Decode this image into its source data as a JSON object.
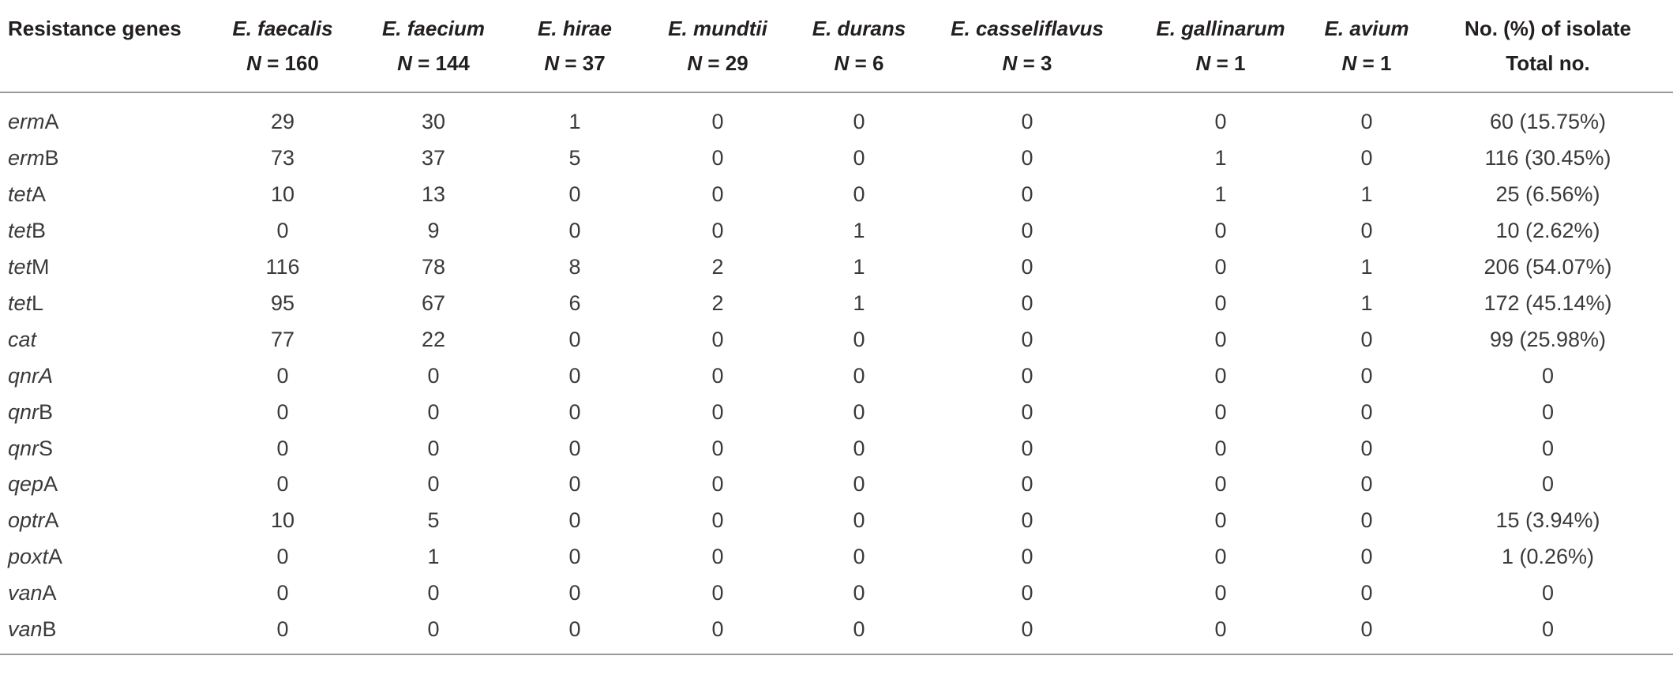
{
  "table": {
    "header": {
      "first_col": "Resistance genes",
      "species": [
        {
          "name": "E. faecalis",
          "n_label": "N",
          "n_value": "= 160"
        },
        {
          "name": "E. faecium",
          "n_label": "N",
          "n_value": "= 144"
        },
        {
          "name": "E. hirae",
          "n_label": "N",
          "n_value": "= 37"
        },
        {
          "name": "E. mundtii",
          "n_label": "N",
          "n_value": "= 29"
        },
        {
          "name": "E. durans",
          "n_label": "N",
          "n_value": "= 6"
        },
        {
          "name": "E. casseliflavus",
          "n_label": "N",
          "n_value": "= 3"
        },
        {
          "name": "E. gallinarum",
          "n_label": "N",
          "n_value": "= 1"
        },
        {
          "name": "E. avium",
          "n_label": "N",
          "n_value": "= 1"
        }
      ],
      "total_line1": "No. (%) of isolate",
      "total_line2": "Total no."
    },
    "rows": [
      {
        "gene_italic": "erm",
        "gene_plain": "A",
        "values": [
          "29",
          "30",
          "1",
          "0",
          "0",
          "0",
          "0",
          "0"
        ],
        "total": "60 (15.75%)"
      },
      {
        "gene_italic": "erm",
        "gene_plain": "B",
        "values": [
          "73",
          "37",
          "5",
          "0",
          "0",
          "0",
          "1",
          "0"
        ],
        "total": "116 (30.45%)"
      },
      {
        "gene_italic": "tet",
        "gene_plain": "A",
        "values": [
          "10",
          "13",
          "0",
          "0",
          "0",
          "0",
          "1",
          "1"
        ],
        "total": "25 (6.56%)"
      },
      {
        "gene_italic": "tet",
        "gene_plain": "B",
        "values": [
          "0",
          "9",
          "0",
          "0",
          "1",
          "0",
          "0",
          "0"
        ],
        "total": "10 (2.62%)"
      },
      {
        "gene_italic": "tet",
        "gene_plain": "M",
        "values": [
          "116",
          "78",
          "8",
          "2",
          "1",
          "0",
          "0",
          "1"
        ],
        "total": "206 (54.07%)"
      },
      {
        "gene_italic": "tet",
        "gene_plain": "L",
        "values": [
          "95",
          "67",
          "6",
          "2",
          "1",
          "0",
          "0",
          "1"
        ],
        "total": "172 (45.14%)"
      },
      {
        "gene_italic": "cat",
        "gene_plain": "",
        "values": [
          "77",
          "22",
          "0",
          "0",
          "0",
          "0",
          "0",
          "0"
        ],
        "total": "99 (25.98%)"
      },
      {
        "gene_italic": "qnrA",
        "gene_plain": "",
        "values": [
          "0",
          "0",
          "0",
          "0",
          "0",
          "0",
          "0",
          "0"
        ],
        "total": "0"
      },
      {
        "gene_italic": "qnr",
        "gene_plain": "B",
        "values": [
          "0",
          "0",
          "0",
          "0",
          "0",
          "0",
          "0",
          "0"
        ],
        "total": "0"
      },
      {
        "gene_italic": "qnr",
        "gene_plain": "S",
        "values": [
          "0",
          "0",
          "0",
          "0",
          "0",
          "0",
          "0",
          "0"
        ],
        "total": "0"
      },
      {
        "gene_italic": "qep",
        "gene_plain": "A",
        "values": [
          "0",
          "0",
          "0",
          "0",
          "0",
          "0",
          "0",
          "0"
        ],
        "total": "0"
      },
      {
        "gene_italic": "optr",
        "gene_plain": "A",
        "values": [
          "10",
          "5",
          "0",
          "0",
          "0",
          "0",
          "0",
          "0"
        ],
        "total": "15 (3.94%)"
      },
      {
        "gene_italic": "poxt",
        "gene_plain": "A",
        "values": [
          "0",
          "1",
          "0",
          "0",
          "0",
          "0",
          "0",
          "0"
        ],
        "total": "1 (0.26%)"
      },
      {
        "gene_italic": "van",
        "gene_plain": "A",
        "values": [
          "0",
          "0",
          "0",
          "0",
          "0",
          "0",
          "0",
          "0"
        ],
        "total": "0"
      },
      {
        "gene_italic": "van",
        "gene_plain": "B",
        "values": [
          "0",
          "0",
          "0",
          "0",
          "0",
          "0",
          "0",
          "0"
        ],
        "total": "0"
      }
    ]
  }
}
